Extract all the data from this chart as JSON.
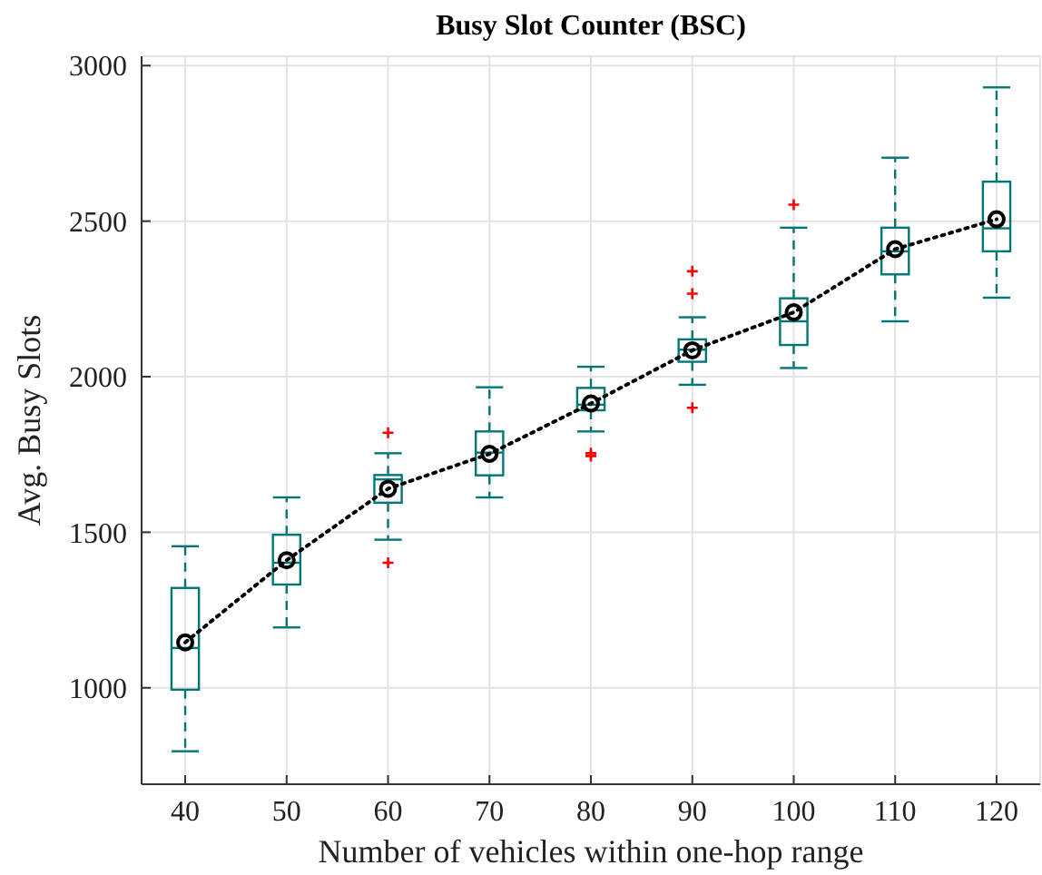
{
  "chart_data": {
    "type": "box",
    "title": "Busy Slot Counter (BSC)",
    "xlabel": "Number of vehicles within one-hop range",
    "ylabel": "Avg. Busy Slots",
    "categories": [
      "40",
      "50",
      "60",
      "70",
      "80",
      "90",
      "100",
      "110",
      "120"
    ],
    "ylim": [
      690,
      3030
    ],
    "yticks": [
      1000,
      1500,
      2000,
      2500,
      3000
    ],
    "grid": true,
    "series": [
      {
        "color": "#007777",
        "boxes": [
          {
            "low": 796,
            "q1": 994,
            "median": 1128,
            "q3": 1321,
            "high": 1455
          },
          {
            "low": 1194,
            "q1": 1332,
            "median": 1402,
            "q3": 1492,
            "high": 1612
          },
          {
            "low": 1476,
            "q1": 1595,
            "median": 1670,
            "q3": 1684,
            "high": 1754,
            "outliers": [
              1820,
              1402
            ]
          },
          {
            "low": 1612,
            "q1": 1683,
            "median": 1756,
            "q3": 1824,
            "high": 1966
          },
          {
            "low": 1824,
            "q1": 1892,
            "median": 1910,
            "q3": 1964,
            "high": 2032,
            "outliers": [
              1754,
              1745
            ]
          },
          {
            "low": 1974,
            "q1": 2048,
            "median": 2087,
            "q3": 2120,
            "high": 2191,
            "outliers": [
              2339,
              2267,
              1900
            ]
          },
          {
            "low": 2028,
            "q1": 2102,
            "median": 2178,
            "q3": 2252,
            "high": 2479,
            "outliers": [
              2553
            ]
          },
          {
            "low": 2178,
            "q1": 2329,
            "median": 2403,
            "q3": 2479,
            "high": 2704
          },
          {
            "low": 2254,
            "q1": 2403,
            "median": 2477,
            "q3": 2627,
            "high": 2930
          }
        ]
      },
      {
        "type": "line",
        "color": "#000000",
        "marker": "circle",
        "line_style": "dotted",
        "values": [
          1146,
          1410,
          1640,
          1752,
          1914,
          2085,
          2207,
          2410,
          2506
        ]
      }
    ]
  }
}
